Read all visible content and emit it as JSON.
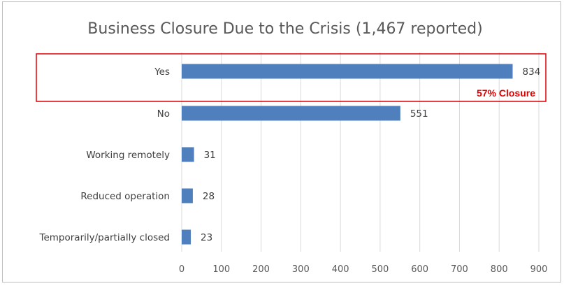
{
  "chart_data": {
    "type": "bar",
    "orientation": "horizontal",
    "title": "Business Closure Due to the Crisis (1,467 reported)",
    "categories": [
      "Yes",
      "No",
      "Working remotely",
      "Reduced operation",
      "Temporarily/partially closed"
    ],
    "values": [
      834,
      551,
      31,
      28,
      23
    ],
    "xlim": [
      0,
      900
    ],
    "xticks": [
      0,
      100,
      200,
      300,
      400,
      500,
      600,
      700,
      800,
      900
    ],
    "grid": true,
    "bar_color": "#4f7fbd",
    "annotation": {
      "text": "57% Closure",
      "highlight_category": "Yes",
      "color": "#e00000"
    }
  }
}
